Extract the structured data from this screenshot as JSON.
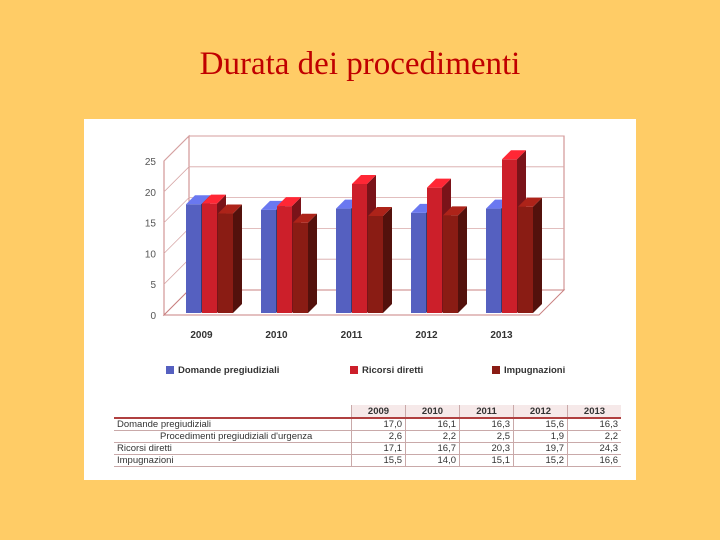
{
  "slide": {
    "title": "Durata dei procedimenti"
  },
  "chart_data": {
    "type": "bar",
    "categories": [
      "2009",
      "2010",
      "2011",
      "2012",
      "2013"
    ],
    "ylim": [
      0,
      25
    ],
    "yticks": [
      "0",
      "5",
      "10",
      "15",
      "20",
      "25"
    ],
    "grid": true,
    "legend_position": "bottom",
    "series": [
      {
        "name": "Domande pregiudiziali",
        "color": "#5560c0",
        "values": [
          17.0,
          16.1,
          16.3,
          15.6,
          16.3
        ]
      },
      {
        "name": "Ricorsi diretti",
        "color": "#cc1f2a",
        "values": [
          17.1,
          16.7,
          20.3,
          19.7,
          24.3
        ]
      },
      {
        "name": "Impugnazioni",
        "color": "#8a1c14",
        "values": [
          15.5,
          14.0,
          15.1,
          15.2,
          16.6
        ]
      }
    ]
  },
  "table": {
    "headers": [
      "2009",
      "2010",
      "2011",
      "2012",
      "2013"
    ],
    "rows": [
      {
        "label": "Domande pregiudiziali",
        "values": [
          "17,0",
          "16,1",
          "16,3",
          "15,6",
          "16,3"
        ]
      },
      {
        "label": "Procedimenti pregiudiziali d'urgenza",
        "values": [
          "2,6",
          "2,2",
          "2,5",
          "1,9",
          "2,2"
        ]
      },
      {
        "label": "Ricorsi diretti",
        "values": [
          "17,1",
          "16,7",
          "20,3",
          "19,7",
          "24,3"
        ]
      },
      {
        "label": "Impugnazioni",
        "values": [
          "15,5",
          "14,0",
          "15,1",
          "15,2",
          "16,6"
        ]
      }
    ]
  }
}
